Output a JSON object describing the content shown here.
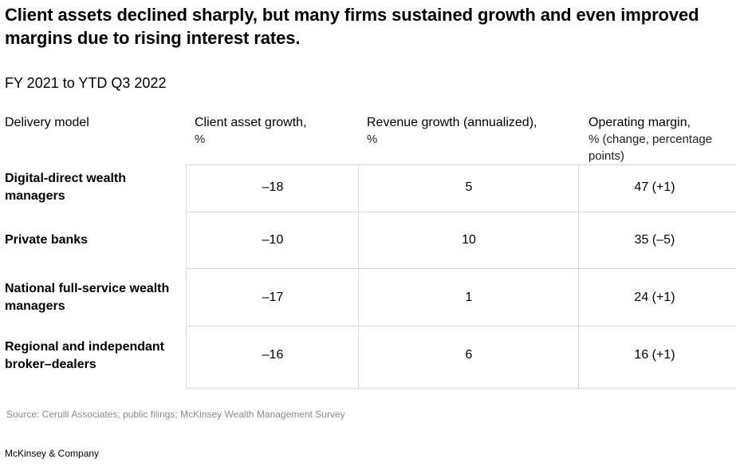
{
  "title": "Client assets declined sharply, but many firms sustained growth and even improved margins due to rising interest rates.",
  "subtitle": "FY 2021 to YTD Q3 2022",
  "source": "Source: Cerulli Associates; public filings; McKinsey Wealth Management Survey",
  "brand": "McKinsey & Company",
  "chart_data": {
    "type": "table",
    "title": "Client assets declined sharply, but many firms sustained growth and even improved margins due to rising interest rates.",
    "subtitle": "FY 2021 to YTD Q3 2022",
    "columns": [
      {
        "label": "Delivery model",
        "unit": ""
      },
      {
        "label": "Client asset growth,",
        "unit": "%"
      },
      {
        "label": "Revenue growth (annualized),",
        "unit": "%"
      },
      {
        "label": "Operating margin,",
        "unit": "% (change, percentage points)"
      }
    ],
    "rows": [
      {
        "model": "Digital-direct wealth managers",
        "asset_growth": "–18",
        "revenue_growth": "5",
        "operating_margin": "47 (+1)"
      },
      {
        "model": "Private banks",
        "asset_growth": "–10",
        "revenue_growth": "10",
        "operating_margin": "35 (–5)"
      },
      {
        "model": "National full-service wealth managers",
        "asset_growth": "–17",
        "revenue_growth": "1",
        "operating_margin": "24 (+1)"
      },
      {
        "model": "Regional and independant broker–dealers",
        "asset_growth": "–16",
        "revenue_growth": "6",
        "operating_margin": "16 (+1)"
      }
    ]
  }
}
